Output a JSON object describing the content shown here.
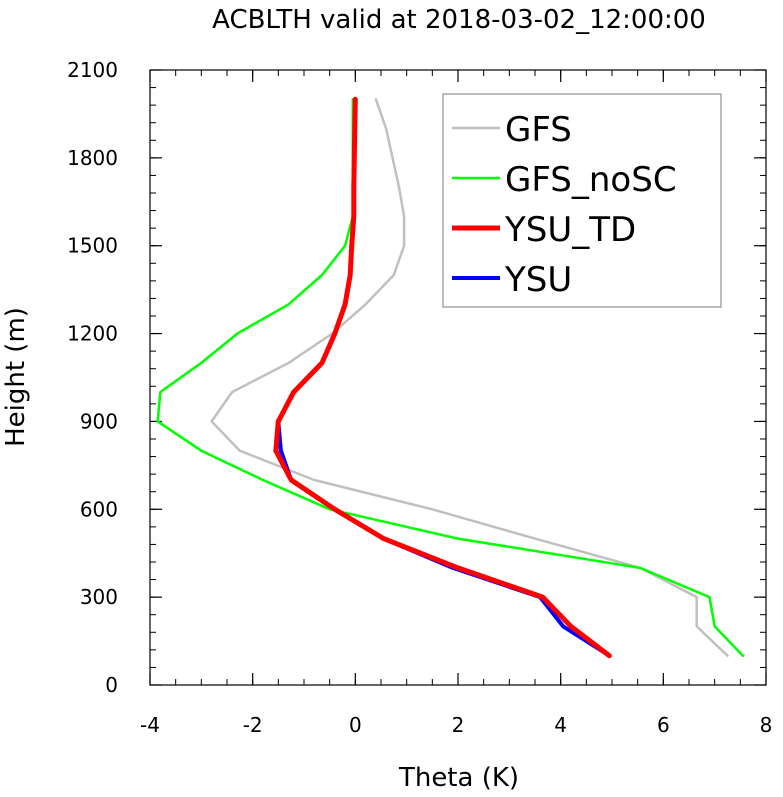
{
  "chart_data": {
    "type": "line",
    "title": "ACBLTH valid at 2018-03-02_12:00:00",
    "xlabel": "Theta (K)",
    "ylabel": "Height (m)",
    "xlim": [
      -4,
      8
    ],
    "ylim": [
      0,
      2100
    ],
    "x_major_ticks": [
      -4,
      -2,
      0,
      2,
      4,
      6,
      8
    ],
    "x_tick_labels": [
      "-4",
      "-2",
      "0",
      "2",
      "4",
      "6",
      "8"
    ],
    "x_minor_step": 0.5,
    "y_major_ticks": [
      0,
      300,
      600,
      900,
      1200,
      1500,
      1800,
      2100
    ],
    "y_tick_labels": [
      "0",
      "300",
      "600",
      "900",
      "1200",
      "1500",
      "1800",
      "2100"
    ],
    "y_minor_step": 60,
    "grid": false,
    "legend_position": "top-right",
    "series": [
      {
        "name": "GFS",
        "color": "#c0c0c0",
        "line_width": 2.5,
        "points": [
          [
            7.25,
            100
          ],
          [
            6.65,
            200
          ],
          [
            6.65,
            300
          ],
          [
            5.55,
            400
          ],
          [
            3.5,
            500
          ],
          [
            1.5,
            600
          ],
          [
            -0.8,
            700
          ],
          [
            -2.25,
            800
          ],
          [
            -2.8,
            900
          ],
          [
            -2.4,
            1000
          ],
          [
            -1.3,
            1100
          ],
          [
            -0.45,
            1200
          ],
          [
            0.2,
            1300
          ],
          [
            0.75,
            1400
          ],
          [
            0.95,
            1500
          ],
          [
            0.95,
            1600
          ],
          [
            0.85,
            1700
          ],
          [
            0.6,
            1900
          ],
          [
            0.4,
            2000
          ]
        ]
      },
      {
        "name": "GFS_noSC",
        "color": "#00ff00",
        "line_width": 2.5,
        "points": [
          [
            7.55,
            100
          ],
          [
            7.0,
            200
          ],
          [
            6.9,
            300
          ],
          [
            5.55,
            400
          ],
          [
            2.0,
            500
          ],
          [
            -0.5,
            600
          ],
          [
            -1.8,
            700
          ],
          [
            -3.0,
            800
          ],
          [
            -3.85,
            900
          ],
          [
            -3.8,
            1000
          ],
          [
            -3.0,
            1100
          ],
          [
            -2.3,
            1200
          ],
          [
            -1.3,
            1300
          ],
          [
            -0.65,
            1400
          ],
          [
            -0.2,
            1500
          ],
          [
            -0.05,
            1600
          ],
          [
            -0.05,
            1800
          ],
          [
            -0.05,
            2000
          ]
        ]
      },
      {
        "name": "YSU",
        "color": "#0000ff",
        "line_width": 4,
        "points": [
          [
            4.95,
            100
          ],
          [
            4.05,
            200
          ],
          [
            3.6,
            300
          ],
          [
            1.9,
            400
          ],
          [
            0.55,
            500
          ],
          [
            -0.4,
            600
          ],
          [
            -1.25,
            700
          ],
          [
            -1.45,
            800
          ],
          [
            -1.5,
            900
          ],
          [
            -1.2,
            1000
          ],
          [
            -0.65,
            1100
          ],
          [
            -0.4,
            1200
          ],
          [
            -0.2,
            1300
          ],
          [
            -0.1,
            1400
          ],
          [
            -0.07,
            1500
          ],
          [
            -0.03,
            1600
          ],
          [
            -0.03,
            1700
          ],
          [
            -0.02,
            1800
          ],
          [
            0.0,
            2000
          ]
        ]
      },
      {
        "name": "YSU_TD",
        "color": "#ff0000",
        "line_width": 5,
        "points": [
          [
            4.95,
            100
          ],
          [
            4.2,
            200
          ],
          [
            3.65,
            300
          ],
          [
            2.0,
            400
          ],
          [
            0.55,
            500
          ],
          [
            -0.4,
            600
          ],
          [
            -1.25,
            700
          ],
          [
            -1.55,
            800
          ],
          [
            -1.5,
            900
          ],
          [
            -1.2,
            1000
          ],
          [
            -0.65,
            1100
          ],
          [
            -0.4,
            1200
          ],
          [
            -0.2,
            1300
          ],
          [
            -0.1,
            1400
          ],
          [
            -0.07,
            1500
          ],
          [
            -0.03,
            1600
          ],
          [
            -0.03,
            1700
          ],
          [
            -0.02,
            1800
          ],
          [
            0.0,
            2000
          ]
        ]
      }
    ],
    "legend_order": [
      "GFS",
      "GFS_noSC",
      "YSU_TD",
      "YSU"
    ]
  }
}
